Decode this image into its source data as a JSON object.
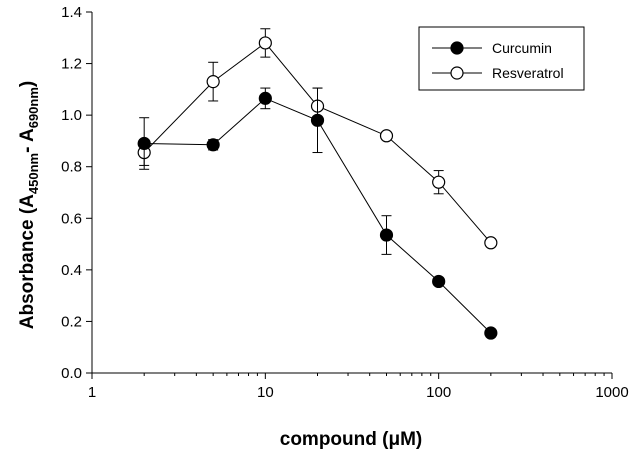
{
  "chart_data": {
    "type": "line",
    "xlabel": "compound (μM)",
    "ylabel": {
      "main": "Absorbance (A",
      "sub1": "450nm",
      "mid": "- A",
      "sub2": "690nm",
      "end": ")"
    },
    "x_scale": "log",
    "xlim": [
      1,
      1000
    ],
    "ylim": [
      0.0,
      1.4
    ],
    "x_ticks": [
      1,
      10,
      100,
      1000
    ],
    "x_tick_labels": [
      "1",
      "10",
      "100",
      "1000"
    ],
    "y_ticks": [
      0.0,
      0.2,
      0.4,
      0.6,
      0.8,
      1.0,
      1.2,
      1.4
    ],
    "y_tick_labels": [
      "0.0",
      "0.2",
      "0.4",
      "0.6",
      "0.8",
      "1.0",
      "1.2",
      "1.4"
    ],
    "grid": false,
    "legend_position": "top-right",
    "series": [
      {
        "name": "Curcumin",
        "marker": "filled-circle",
        "color": "#000000",
        "x": [
          2,
          5,
          10,
          20,
          50,
          100,
          200
        ],
        "y": [
          0.89,
          0.885,
          1.065,
          0.98,
          0.535,
          0.355,
          0.155
        ],
        "err": [
          0.1,
          0.02,
          0.04,
          0.125,
          0.075,
          0.015,
          0.015
        ]
      },
      {
        "name": "Resveratrol",
        "marker": "open-circle",
        "color": "#000000",
        "x": [
          2,
          5,
          10,
          20,
          50,
          100,
          200
        ],
        "y": [
          0.855,
          1.13,
          1.28,
          1.035,
          0.92,
          0.74,
          0.505
        ],
        "err": [
          0.05,
          0.075,
          0.055,
          0.07,
          0.015,
          0.045,
          0.015
        ]
      }
    ]
  }
}
